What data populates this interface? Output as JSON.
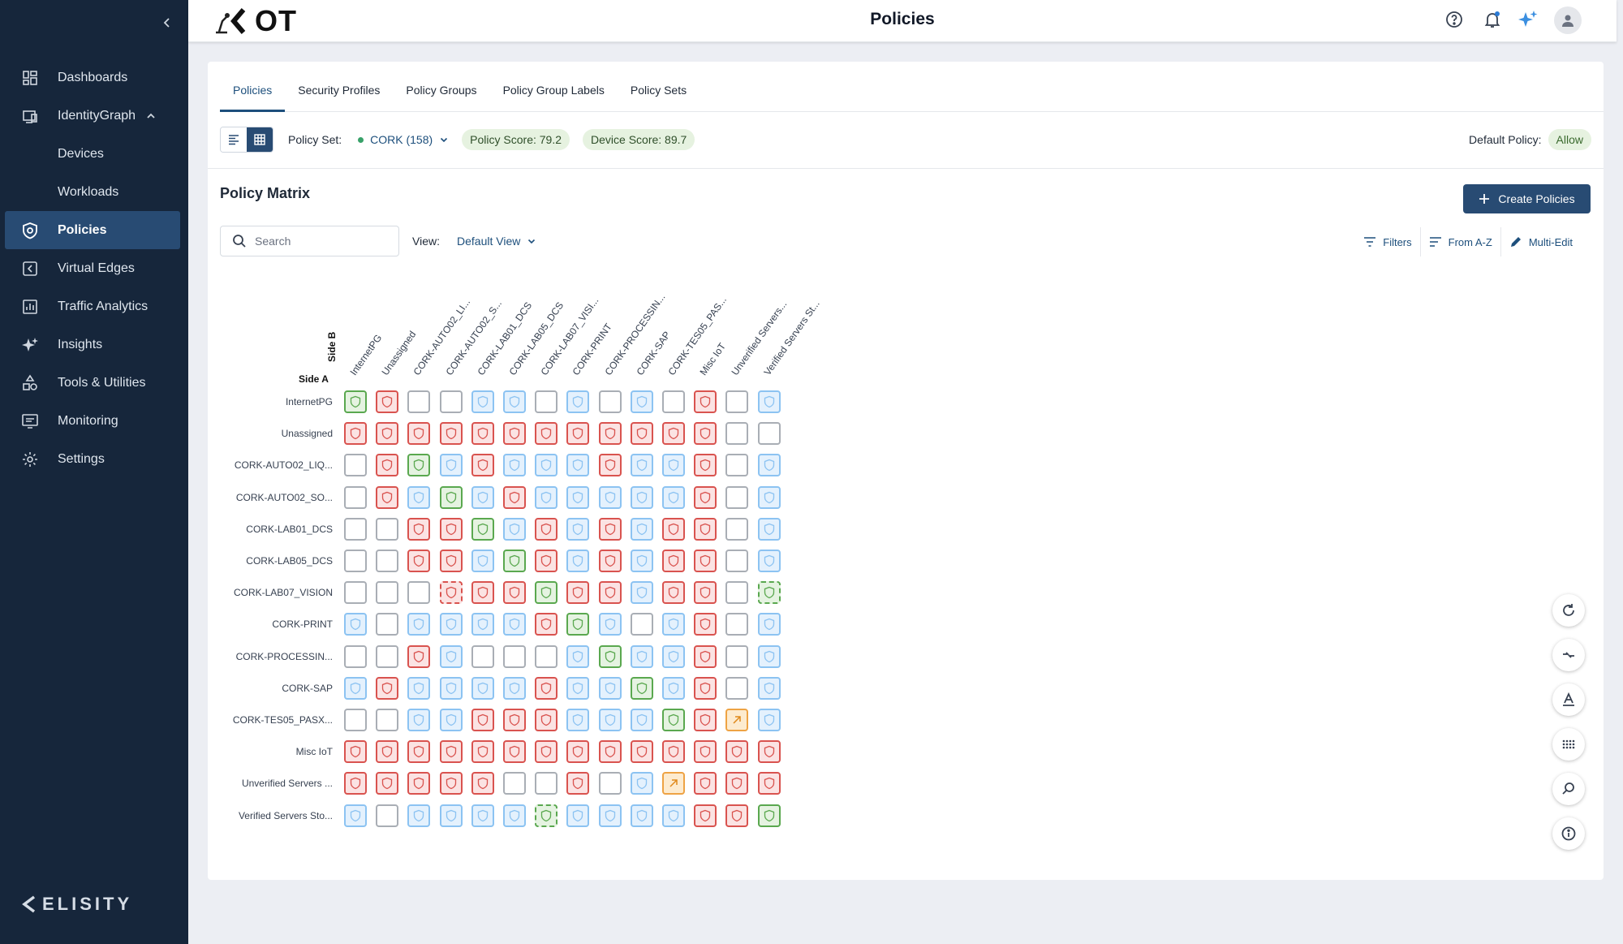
{
  "sidebar": {
    "items": [
      {
        "label": "Dashboards",
        "icon": "grid-icon",
        "active": false
      },
      {
        "label": "IdentityGraph",
        "icon": "identity-graph-icon",
        "active": false,
        "expanded": true
      },
      {
        "label": "Devices",
        "sub": true
      },
      {
        "label": "Workloads",
        "sub": true
      },
      {
        "label": "Policies",
        "icon": "shield-icon",
        "active": true
      },
      {
        "label": "Virtual Edges",
        "icon": "virtual-edge-icon",
        "active": false
      },
      {
        "label": "Traffic Analytics",
        "icon": "bar-chart-icon",
        "active": false
      },
      {
        "label": "Insights",
        "icon": "sparkle-icon",
        "active": false
      },
      {
        "label": "Tools & Utilities",
        "icon": "tools-icon",
        "active": false
      },
      {
        "label": "Monitoring",
        "icon": "monitor-icon",
        "active": false
      },
      {
        "label": "Settings",
        "icon": "gear-icon",
        "active": false
      }
    ],
    "brand": "ELISITY"
  },
  "header": {
    "logo_text": "OT",
    "title": "Policies"
  },
  "tabs": [
    {
      "label": "Policies",
      "active": true
    },
    {
      "label": "Security Profiles",
      "active": false
    },
    {
      "label": "Policy Groups",
      "active": false
    },
    {
      "label": "Policy Group Labels",
      "active": false
    },
    {
      "label": "Policy Sets",
      "active": false
    }
  ],
  "toolbar": {
    "policy_set_label": "Policy Set:",
    "policy_set_value": "CORK (158)",
    "policy_score": "Policy Score: 79.2",
    "device_score": "Device Score: 89.7",
    "default_policy_label": "Default Policy:",
    "default_policy_value": "Allow"
  },
  "matrix_section": {
    "title": "Policy Matrix",
    "create_label": "Create Policies",
    "search_placeholder": "Search",
    "view_label": "View:",
    "view_value": "Default View",
    "filters_label": "Filters",
    "sort_label": "From A-Z",
    "multi_edit_label": "Multi-Edit",
    "side_a": "Side A",
    "side_b": "Side B"
  },
  "matrix": {
    "columns": [
      "InternetPG",
      "Unassigned",
      "CORK-AUTO02_LI...",
      "CORK-AUTO02_S...",
      "CORK-LAB01_DCS",
      "CORK-LAB05_DCS",
      "CORK-LAB07_VISI...",
      "CORK-PRINT",
      "CORK-PROCESSIN...",
      "CORK-SAP",
      "CORK-TES05_PAS...",
      "Misc IoT",
      "Unverified Servers...",
      "Verified Servers St..."
    ],
    "rows": [
      {
        "label": "InternetPG",
        "cells": [
          "G",
          "R",
          "E",
          "E",
          "B",
          "B",
          "E",
          "B",
          "E",
          "B",
          "E",
          "R",
          "E",
          "B"
        ]
      },
      {
        "label": "Unassigned",
        "cells": [
          "R",
          "R",
          "R",
          "R",
          "R",
          "R",
          "R",
          "R",
          "R",
          "R",
          "R",
          "R",
          "E",
          "E"
        ]
      },
      {
        "label": "CORK-AUTO02_LIQ...",
        "cells": [
          "E",
          "R",
          "G",
          "B",
          "R",
          "B",
          "B",
          "B",
          "R",
          "B",
          "B",
          "R",
          "E",
          "B"
        ]
      },
      {
        "label": "CORK-AUTO02_SO...",
        "cells": [
          "E",
          "R",
          "B",
          "G",
          "B",
          "R",
          "B",
          "B",
          "B",
          "B",
          "B",
          "R",
          "E",
          "B"
        ]
      },
      {
        "label": "CORK-LAB01_DCS",
        "cells": [
          "E",
          "E",
          "R",
          "R",
          "G",
          "B",
          "R",
          "B",
          "R",
          "B",
          "R",
          "R",
          "E",
          "B"
        ]
      },
      {
        "label": "CORK-LAB05_DCS",
        "cells": [
          "E",
          "E",
          "R",
          "R",
          "B",
          "G",
          "R",
          "B",
          "R",
          "B",
          "R",
          "R",
          "E",
          "B"
        ]
      },
      {
        "label": "CORK-LAB07_VISION",
        "cells": [
          "E",
          "E",
          "E",
          "DR",
          "R",
          "R",
          "G",
          "R",
          "R",
          "B",
          "R",
          "R",
          "E",
          "DG"
        ]
      },
      {
        "label": "CORK-PRINT",
        "cells": [
          "B",
          "E",
          "B",
          "B",
          "B",
          "B",
          "R",
          "G",
          "B",
          "E",
          "B",
          "R",
          "E",
          "B"
        ]
      },
      {
        "label": "CORK-PROCESSIN...",
        "cells": [
          "E",
          "E",
          "R",
          "B",
          "E",
          "E",
          "E",
          "B",
          "G",
          "B",
          "B",
          "R",
          "E",
          "B"
        ]
      },
      {
        "label": "CORK-SAP",
        "cells": [
          "B",
          "R",
          "B",
          "B",
          "B",
          "B",
          "R",
          "B",
          "B",
          "G",
          "B",
          "R",
          "E",
          "B"
        ]
      },
      {
        "label": "CORK-TES05_PASX...",
        "cells": [
          "E",
          "E",
          "B",
          "B",
          "R",
          "R",
          "R",
          "B",
          "B",
          "B",
          "G",
          "R",
          "O",
          "B"
        ]
      },
      {
        "label": "Misc IoT",
        "cells": [
          "R",
          "R",
          "R",
          "R",
          "R",
          "R",
          "R",
          "R",
          "R",
          "R",
          "R",
          "R",
          "R",
          "R"
        ]
      },
      {
        "label": "Unverified Servers ...",
        "cells": [
          "R",
          "R",
          "R",
          "R",
          "R",
          "E",
          "E",
          "R",
          "E",
          "B",
          "O",
          "R",
          "R",
          "R"
        ]
      },
      {
        "label": "Verified Servers Sto...",
        "cells": [
          "B",
          "E",
          "B",
          "B",
          "B",
          "B",
          "DG",
          "B",
          "B",
          "B",
          "B",
          "R",
          "R",
          "G"
        ]
      }
    ]
  },
  "colors": {
    "sidebar_bg": "#16263b",
    "active_nav": "#284b73",
    "accent": "#1d4f7c",
    "deny": "#d9534f",
    "allow": "#5aa84f",
    "info": "#8cc3f2"
  }
}
